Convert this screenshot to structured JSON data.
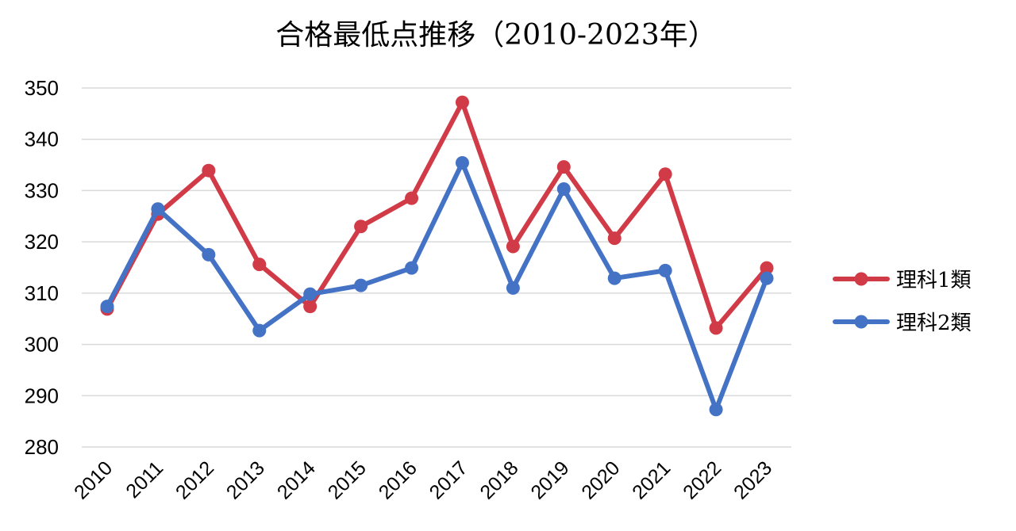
{
  "chart_data": {
    "type": "line",
    "title": "合格最低点推移（2010-2023年）",
    "xlabel": "",
    "ylabel": "",
    "categories": [
      "2010",
      "2011",
      "2012",
      "2013",
      "2014",
      "2015",
      "2016",
      "2017",
      "2018",
      "2019",
      "2020",
      "2021",
      "2022",
      "2023"
    ],
    "ylim": [
      280,
      350
    ],
    "yticks": [
      280,
      290,
      300,
      310,
      320,
      330,
      340,
      350
    ],
    "grid": true,
    "legend_position": "right",
    "series": [
      {
        "name": "理科1類",
        "color": "#D13A47",
        "values": [
          306.9,
          325.4,
          333.9,
          315.6,
          307.4,
          323.0,
          328.5,
          347.2,
          319.1,
          334.6,
          320.7,
          333.2,
          303.2,
          314.9
        ]
      },
      {
        "name": "理科2類",
        "color": "#4472C4",
        "values": [
          307.4,
          326.4,
          317.5,
          302.7,
          309.8,
          311.5,
          314.9,
          335.4,
          311.0,
          330.3,
          312.9,
          314.4,
          287.3,
          312.9
        ]
      }
    ]
  }
}
